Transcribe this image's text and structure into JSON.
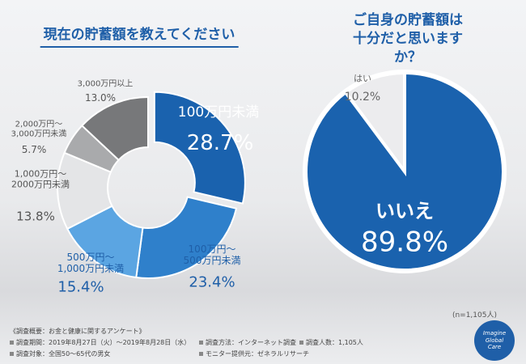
{
  "chart_data": [
    {
      "type": "donut",
      "title": "現在の貯蓄額を教えてください",
      "categories": [
        "100万円未満",
        "100万円～\n500万円未満",
        "500万円～\n1,000万円未満",
        "1,000万円～\n2000万円未満",
        "2,000万円～\n3,000万円未満",
        "3,000万円以上"
      ],
      "values": [
        28.7,
        23.4,
        15.4,
        13.8,
        5.7,
        13.0
      ],
      "value_labels": [
        "28.7%",
        "23.4%",
        "15.4%",
        "13.8%",
        "5.7%",
        "13.0%"
      ],
      "colors": [
        "#1a62ae",
        "#2f80cb",
        "#5ba5e2",
        "#e4e5e7",
        "#a9aaac",
        "#77787a"
      ]
    },
    {
      "type": "pie",
      "title": "ご自身の貯蓄額は\n十分だと思いますか？",
      "categories": [
        "いいえ",
        "はい"
      ],
      "values": [
        89.8,
        10.2
      ],
      "value_labels": [
        "89.8%",
        "10.2%"
      ],
      "colors": [
        "#1a62ae",
        "#ececee"
      ]
    }
  ],
  "footer": {
    "survey_title": "《調査概要：お金と健康に関するアンケート》",
    "items": [
      "調査期間：2019年8月27日（火）～2019年8月28日（水）",
      "調査対象：全国50～65代の男女",
      "調査方法：インターネット調査",
      "調査人数：1,105人",
      "モニター提供元：ゼネラルリサーチ"
    ],
    "sample": "(n=1,105人)",
    "logo": [
      "Imagine",
      "Global",
      "Care"
    ]
  }
}
